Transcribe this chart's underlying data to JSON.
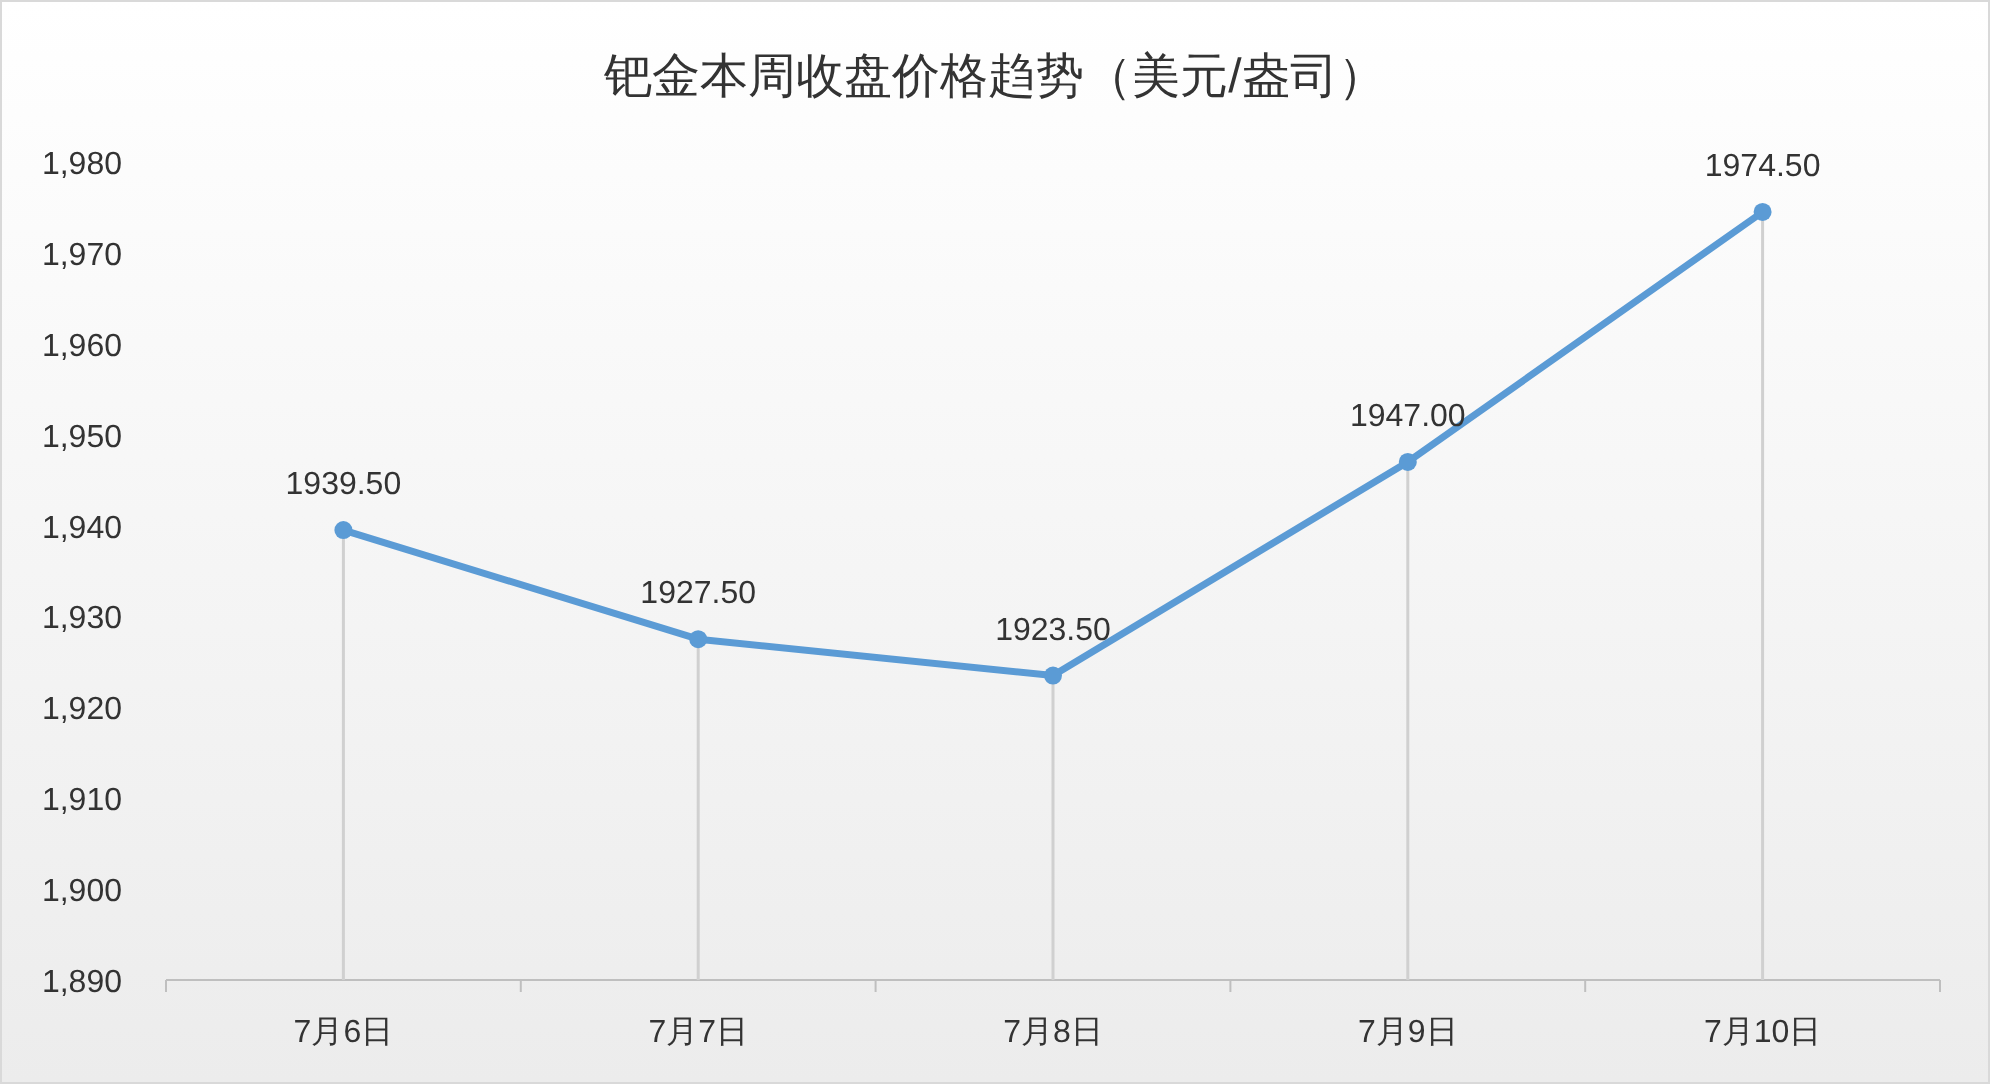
{
  "chart_data": {
    "type": "line",
    "title": "钯金本周收盘价格趋势（美元/盎司）",
    "categories": [
      "7月6日",
      "7月7日",
      "7月8日",
      "7月9日",
      "7月10日"
    ],
    "series": [
      {
        "color": "#5b9bd5",
        "values": [
          1939.5,
          1927.5,
          1923.5,
          1947.0,
          1974.5
        ],
        "value_labels": [
          "1939.50",
          "1927.50",
          "1923.50",
          "1947.00",
          "1974.50"
        ]
      }
    ],
    "ylim": [
      1890,
      1980
    ],
    "yticks": [
      {
        "value": 1890,
        "label": "1,890"
      },
      {
        "value": 1900,
        "label": "1,900"
      },
      {
        "value": 1910,
        "label": "1,910"
      },
      {
        "value": 1920,
        "label": "1,920"
      },
      {
        "value": 1930,
        "label": "1,930"
      },
      {
        "value": 1940,
        "label": "1,940"
      },
      {
        "value": 1950,
        "label": "1,950"
      },
      {
        "value": 1960,
        "label": "1,960"
      },
      {
        "value": 1970,
        "label": "1,970"
      },
      {
        "value": 1980,
        "label": "1,980"
      }
    ],
    "marker": "circle",
    "grid": "x"
  }
}
